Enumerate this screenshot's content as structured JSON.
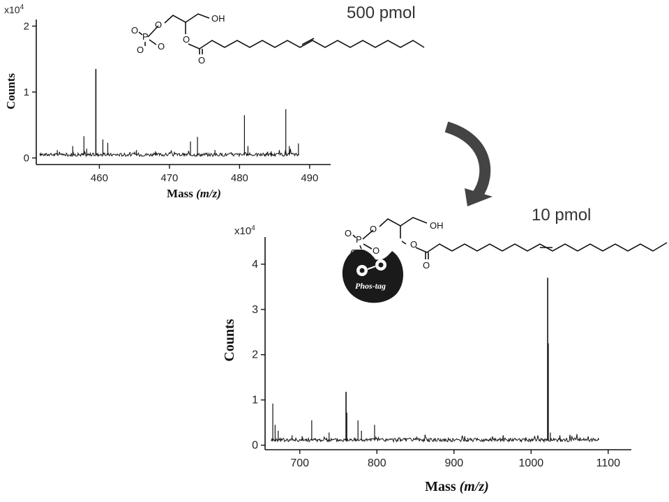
{
  "chart_data": [
    {
      "type": "line",
      "amount_label": "500 pmol",
      "multiplier_label": "x10",
      "multiplier_exponent": "4",
      "xlabel_main": "Mass ",
      "xlabel_unit": "(m/z)",
      "ylabel": "Counts",
      "xlim": [
        451,
        493
      ],
      "ylim": [
        -0.1,
        2.1
      ],
      "xticks": [
        460,
        470,
        480,
        490
      ],
      "yticks": [
        0,
        1,
        2
      ],
      "baseline": 0.04,
      "noise": 0.025,
      "peaks": [
        {
          "x": 459.5,
          "y": 1.35
        },
        {
          "x": 480.7,
          "y": 0.65
        },
        {
          "x": 486.6,
          "y": 0.74
        },
        {
          "x": 457.8,
          "y": 0.33
        },
        {
          "x": 460.5,
          "y": 0.28
        },
        {
          "x": 461.2,
          "y": 0.23
        },
        {
          "x": 474.0,
          "y": 0.32
        },
        {
          "x": 473.0,
          "y": 0.25
        },
        {
          "x": 456.2,
          "y": 0.18
        },
        {
          "x": 458.2,
          "y": 0.14
        },
        {
          "x": 481.2,
          "y": 0.18
        },
        {
          "x": 487.1,
          "y": 0.18
        },
        {
          "x": 488.4,
          "y": 0.22
        },
        {
          "x": 465.3,
          "y": 0.12
        },
        {
          "x": 468.0,
          "y": 0.1
        },
        {
          "x": 476.5,
          "y": 0.12
        },
        {
          "x": 454.0,
          "y": 0.12
        },
        {
          "x": 484.5,
          "y": 0.1
        }
      ]
    },
    {
      "type": "line",
      "amount_label": "10 pmol",
      "multiplier_label": "x10",
      "multiplier_exponent": "4",
      "xlabel_main": "Mass ",
      "xlabel_unit": "(m/z)",
      "ylabel": "Counts",
      "xlim": [
        655,
        1130
      ],
      "ylim": [
        -0.1,
        4.6
      ],
      "xticks": [
        700,
        800,
        900,
        1000,
        1100
      ],
      "yticks": [
        0,
        1,
        2,
        3,
        4
      ],
      "baseline": 0.1,
      "noise": 0.04,
      "peaks": [
        {
          "x": 1021.5,
          "y": 3.7
        },
        {
          "x": 1022.2,
          "y": 2.25
        },
        {
          "x": 665.0,
          "y": 0.92
        },
        {
          "x": 760.0,
          "y": 1.18
        },
        {
          "x": 761.0,
          "y": 0.72
        },
        {
          "x": 715.5,
          "y": 0.55
        },
        {
          "x": 775.5,
          "y": 0.55
        },
        {
          "x": 797.0,
          "y": 0.45
        },
        {
          "x": 738.0,
          "y": 0.28
        },
        {
          "x": 668.0,
          "y": 0.45
        },
        {
          "x": 672.0,
          "y": 0.32
        },
        {
          "x": 690.0,
          "y": 0.22
        },
        {
          "x": 703.0,
          "y": 0.2
        },
        {
          "x": 780.0,
          "y": 0.32
        },
        {
          "x": 918.0,
          "y": 0.16
        },
        {
          "x": 1025.0,
          "y": 0.28
        }
      ]
    }
  ],
  "structures": {
    "top": {
      "hydroxyl": "OH",
      "phosphorus": "P"
    },
    "bottom": {
      "hydroxyl": "OH",
      "phosphorus": "P",
      "tag_label": "Phos-tag"
    }
  },
  "colors": {
    "ink": "#111111",
    "arrow": "#444444",
    "tag_fill": "#1a1a1a"
  }
}
